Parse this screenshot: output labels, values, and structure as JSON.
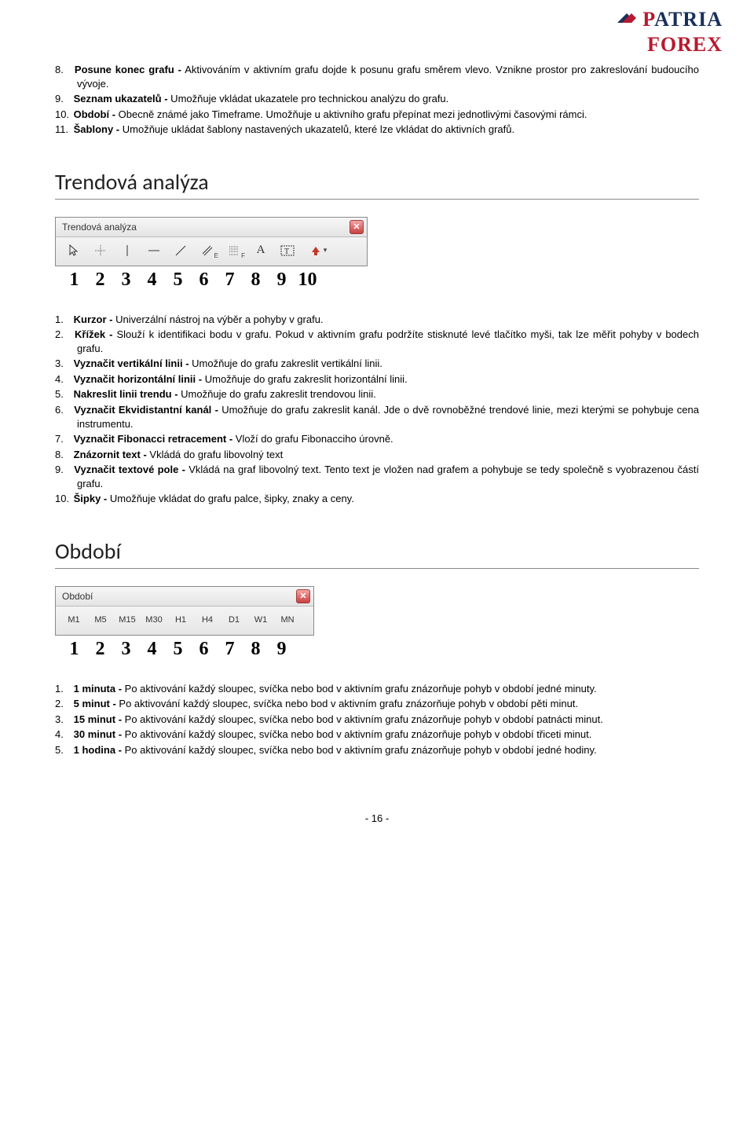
{
  "logo": {
    "line1_a": "P",
    "line1_b": "ATRIA",
    "line2": "FOREX"
  },
  "list1": [
    {
      "n": "8.",
      "b": "Posune konec grafu -",
      "t": " Aktivováním v aktivním grafu dojde k posunu grafu směrem vlevo. Vznikne prostor pro zakreslování budoucího vývoje."
    },
    {
      "n": "9.",
      "b": "Seznam ukazatelů -",
      "t": " Umožňuje vkládat ukazatele pro technickou analýzu do grafu."
    },
    {
      "n": "10.",
      "b": "Období -",
      "t": " Obecně známé jako Timeframe. Umožňuje u aktivního grafu přepínat mezi jednotlivými časovými rámci."
    },
    {
      "n": "11.",
      "b": "Šablony -",
      "t": " Umožňuje ukládat šablony nastavených ukazatelů, které lze vkládat do aktivních grafů."
    }
  ],
  "section1": "Trendová analýza",
  "toolbar1": {
    "title": "Trendová analýza"
  },
  "numbers1": [
    "1",
    "2",
    "3",
    "4",
    "5",
    "6",
    "7",
    "8",
    "9",
    "10"
  ],
  "list2": [
    {
      "n": "1.",
      "b": "Kurzor -",
      "t": " Univerzální nástroj na výběr a pohyby v grafu."
    },
    {
      "n": "2.",
      "b": "Křížek -",
      "t": " Slouží k identifikaci bodu v grafu. Pokud v aktivním grafu podržíte stisknuté levé tlačítko myši, tak lze měřit pohyby v bodech grafu."
    },
    {
      "n": "3.",
      "b": "Vyznačit vertikální linii -",
      "t": " Umožňuje do grafu zakreslit vertikální linii."
    },
    {
      "n": "4.",
      "b": "Vyznačit horizontální linii -",
      "t": " Umožňuje do grafu zakreslit horizontální linii."
    },
    {
      "n": "5.",
      "b": "Nakreslit linii trendu -",
      "t": " Umožňuje do grafu zakreslit trendovou linii."
    },
    {
      "n": "6.",
      "b": "Vyznačit Ekvidistantní kanál -",
      "t": " Umožňuje do grafu zakreslit kanál. Jde o dvě rovnoběžné trendové linie, mezi kterými se pohybuje cena instrumentu."
    },
    {
      "n": "7.",
      "b": "Vyznačit Fibonacci retracement -",
      "t": " Vloží do grafu Fibonacciho úrovně."
    },
    {
      "n": "8.",
      "b": "Znázornit text -",
      "t": " Vkládá do grafu libovolný text"
    },
    {
      "n": "9.",
      "b": "Vyznačit textové pole -",
      "t": " Vkládá na graf libovolný text. Tento text je vložen nad grafem a pohybuje se tedy společně s vyobrazenou částí grafu."
    },
    {
      "n": "10.",
      "b": "Šipky -",
      "t": " Umožňuje vkládat do grafu palce, šipky, znaky a ceny."
    }
  ],
  "section2": "Období",
  "toolbar2": {
    "title": "Období",
    "buttons": [
      "M1",
      "M5",
      "M15",
      "M30",
      "H1",
      "H4",
      "D1",
      "W1",
      "MN"
    ]
  },
  "numbers2": [
    "1",
    "2",
    "3",
    "4",
    "5",
    "6",
    "7",
    "8",
    "9"
  ],
  "list3": [
    {
      "n": "1.",
      "b": "1 minuta -",
      "t": " Po aktivování každý sloupec, svíčka nebo bod v aktivním grafu znázorňuje pohyb v období jedné minuty."
    },
    {
      "n": "2.",
      "b": "5 minut -",
      "t": " Po aktivování každý sloupec, svíčka nebo bod v aktivním grafu znázorňuje pohyb v období pěti minut."
    },
    {
      "n": "3.",
      "b": "15 minut -",
      "t": " Po aktivování každý sloupec, svíčka nebo bod v aktivním grafu znázorňuje pohyb v období patnácti minut."
    },
    {
      "n": "4.",
      "b": "30 minut -",
      "t": " Po aktivování každý sloupec, svíčka nebo bod v aktivním grafu znázorňuje pohyb v období třiceti minut."
    },
    {
      "n": "5.",
      "b": "1 hodina -",
      "t": " Po aktivování každý sloupec, svíčka nebo bod v aktivním grafu znázorňuje pohyb v období jedné hodiny."
    }
  ],
  "pagenum": "- 16 -"
}
